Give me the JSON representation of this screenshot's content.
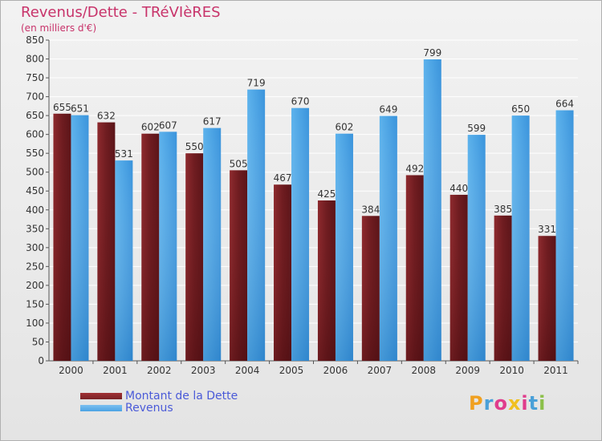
{
  "header": {
    "title": "Revenus/Dette - TRéVIèRES",
    "subtitle": "(en milliers d'€)"
  },
  "legend": {
    "items": [
      "Montant de la Dette",
      "Revenus"
    ]
  },
  "logo": {
    "letters": [
      "P",
      "r",
      "o",
      "x",
      "i",
      "t",
      "i"
    ],
    "colors": [
      "#f0a020",
      "#4aa0d8",
      "#e03c8c",
      "#f0c020",
      "#e03c8c",
      "#4aa0d8",
      "#8cc04a"
    ]
  },
  "colors": {
    "dette": "#7a2226",
    "revenus": "#4aa2e4",
    "grid": "#ffffff",
    "axis_text": "#333333"
  },
  "chart_data": {
    "type": "bar",
    "title": "Revenus/Dette - TRéVIèRES",
    "subtitle": "(en milliers d'€)",
    "categories": [
      "2000",
      "2001",
      "2002",
      "2003",
      "2004",
      "2005",
      "2006",
      "2007",
      "2008",
      "2009",
      "2010",
      "2011"
    ],
    "series": [
      {
        "name": "Montant de la Dette",
        "values": [
          655,
          632,
          602,
          550,
          505,
          467,
          425,
          384,
          492,
          440,
          385,
          331
        ]
      },
      {
        "name": "Revenus",
        "values": [
          651,
          531,
          607,
          617,
          719,
          670,
          602,
          649,
          799,
          599,
          650,
          664
        ]
      }
    ],
    "ylim": [
      0,
      850
    ],
    "yticks": [
      0,
      50,
      100,
      150,
      200,
      250,
      300,
      350,
      400,
      450,
      500,
      550,
      600,
      650,
      700,
      750,
      800,
      850
    ],
    "grid": true,
    "legend_position": "bottom-left"
  }
}
